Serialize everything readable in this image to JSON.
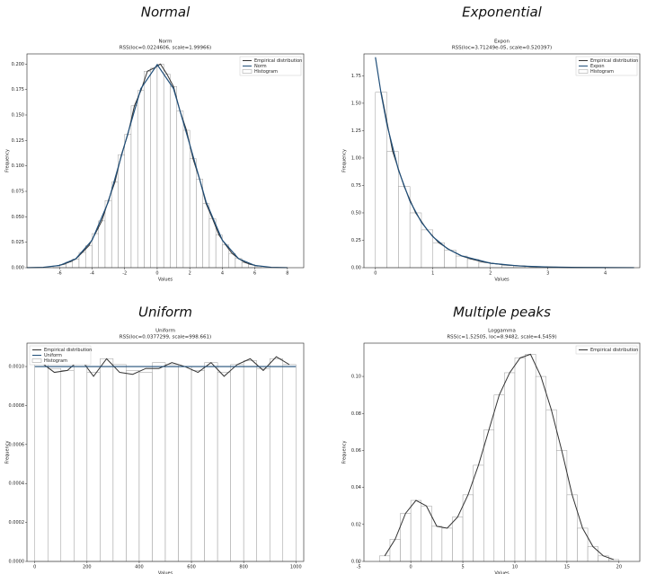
{
  "chart_data": [
    {
      "type": "histfit",
      "heading": "Normal",
      "title": "Norm",
      "subtitle": "RSS(loc=0.0224606, scale=1.99966)",
      "xlabel": "Values",
      "ylabel": "Frequency",
      "legend": "upper right",
      "xlim": [
        -8,
        9
      ],
      "ylim": [
        0,
        0.21
      ],
      "xticks": [
        -6,
        -4,
        -2,
        0,
        2,
        4,
        6,
        8
      ],
      "yticks": [
        {
          "value": 0,
          "label": "0.000"
        },
        {
          "value": 0.025,
          "label": "0.025"
        },
        {
          "value": 0.05,
          "label": "0.050"
        },
        {
          "value": 0.075,
          "label": "0.075"
        },
        {
          "value": 0.1,
          "label": "0.100"
        },
        {
          "value": 0.125,
          "label": "0.125"
        },
        {
          "value": 0.15,
          "label": "0.150"
        },
        {
          "value": 0.175,
          "label": "0.175"
        },
        {
          "value": 0.2,
          "label": "0.200"
        }
      ],
      "series": [
        {
          "name": "Empirical distribution",
          "color": "#333333",
          "x": [
            -6.2,
            -5.8,
            -5.4,
            -5,
            -4.6,
            -4.2,
            -3.8,
            -3.4,
            -3,
            -2.6,
            -2.2,
            -1.8,
            -1.4,
            -1,
            -0.6,
            -0.2,
            0.2,
            0.6,
            1,
            1.4,
            1.8,
            2.2,
            2.6,
            3,
            3.4,
            3.8,
            4.2,
            4.6,
            5,
            5.4,
            5.8,
            6.2
          ],
          "values": [
            0.0017,
            0.0031,
            0.0055,
            0.0085,
            0.015,
            0.0215,
            0.0335,
            0.046,
            0.066,
            0.084,
            0.111,
            0.131,
            0.159,
            0.174,
            0.193,
            0.196,
            0.2,
            0.19,
            0.178,
            0.154,
            0.135,
            0.107,
            0.087,
            0.063,
            0.048,
            0.032,
            0.0225,
            0.014,
            0.009,
            0.005,
            0.003,
            0.0015
          ]
        },
        {
          "name": "Norm",
          "color": "#1f4e79",
          "x": [
            -8,
            -7,
            -6,
            -5,
            -4,
            -3,
            -2,
            -1,
            0,
            1,
            2,
            3,
            4,
            5,
            6,
            7,
            8
          ],
          "values": [
            7e-05,
            0.0004,
            0.0022,
            0.0088,
            0.027,
            0.0648,
            0.121,
            0.176,
            0.1995,
            0.176,
            0.121,
            0.0648,
            0.027,
            0.0088,
            0.0022,
            0.0004,
            7e-05
          ]
        }
      ],
      "histogram": {
        "name": "Histogram",
        "color": "#999999",
        "bins": [
          -6.4,
          -6,
          -5.6,
          -5.2,
          -4.8,
          -4.4,
          -4,
          -3.6,
          -3.2,
          -2.8,
          -2.4,
          -2,
          -1.6,
          -1.2,
          -0.8,
          -0.4,
          0,
          0.4,
          0.8,
          1.2,
          1.6,
          2,
          2.4,
          2.8,
          3.2,
          3.6,
          4,
          4.4,
          4.8,
          5.2,
          5.6,
          6,
          6.4
        ],
        "values": [
          0.0017,
          0.0031,
          0.0055,
          0.0085,
          0.015,
          0.0215,
          0.0335,
          0.046,
          0.066,
          0.084,
          0.111,
          0.131,
          0.159,
          0.174,
          0.193,
          0.196,
          0.2,
          0.19,
          0.178,
          0.154,
          0.135,
          0.107,
          0.087,
          0.063,
          0.048,
          0.032,
          0.0225,
          0.014,
          0.009,
          0.005,
          0.003,
          0.0015
        ]
      }
    },
    {
      "type": "histfit",
      "heading": "Exponential",
      "title": "Expon",
      "subtitle": "RSS(loc=3.71249e-05, scale=0.520397)",
      "xlabel": "Values",
      "ylabel": "Frequency",
      "legend": "upper right",
      "xlim": [
        -0.2,
        4.6
      ],
      "ylim": [
        0,
        1.95
      ],
      "xticks": [
        0,
        1,
        2,
        3,
        4
      ],
      "yticks": [
        {
          "value": 0,
          "label": "0.00"
        },
        {
          "value": 0.25,
          "label": "0.25"
        },
        {
          "value": 0.5,
          "label": "0.50"
        },
        {
          "value": 0.75,
          "label": "0.75"
        },
        {
          "value": 1,
          "label": "1.00"
        },
        {
          "value": 1.25,
          "label": "1.25"
        },
        {
          "value": 1.5,
          "label": "1.50"
        },
        {
          "value": 1.75,
          "label": "1.75"
        }
      ],
      "series": [
        {
          "name": "Empirical distribution",
          "color": "#333333",
          "x": [
            0.1,
            0.3,
            0.5,
            0.7,
            0.9,
            1.1,
            1.3,
            1.5,
            1.7,
            1.9,
            2.1,
            2.3,
            2.5,
            2.7,
            2.9,
            3.1,
            3.3,
            3.5,
            3.7,
            3.9,
            4.1,
            4.3
          ],
          "values": [
            1.6,
            1.06,
            0.74,
            0.5,
            0.345,
            0.228,
            0.16,
            0.106,
            0.075,
            0.049,
            0.035,
            0.022,
            0.017,
            0.01,
            0.008,
            0.005,
            0.003,
            0.002,
            0.001,
            0.001,
            0.0005,
            0.0003
          ]
        },
        {
          "name": "Expon",
          "color": "#1f4e79",
          "x": [
            0,
            0.1,
            0.2,
            0.4,
            0.6,
            0.8,
            1,
            1.25,
            1.5,
            2,
            2.5,
            3,
            3.5,
            4,
            4.5
          ],
          "values": [
            1.92,
            1.584,
            1.307,
            0.891,
            0.607,
            0.414,
            0.282,
            0.174,
            0.108,
            0.041,
            0.016,
            0.006,
            0.0023,
            0.0009,
            0.0003
          ]
        }
      ],
      "histogram": {
        "name": "Histogram",
        "color": "#999999",
        "bins": [
          0,
          0.2,
          0.4,
          0.6,
          0.8,
          1,
          1.2,
          1.4,
          1.6,
          1.8,
          2,
          2.2,
          2.4,
          2.6,
          2.8,
          3,
          3.2,
          3.4,
          3.6,
          3.8,
          4,
          4.2,
          4.4
        ],
        "values": [
          1.6,
          1.06,
          0.74,
          0.5,
          0.345,
          0.228,
          0.16,
          0.106,
          0.075,
          0.049,
          0.035,
          0.022,
          0.017,
          0.01,
          0.008,
          0.005,
          0.003,
          0.002,
          0.001,
          0.001,
          0.0005,
          0.0003
        ]
      }
    },
    {
      "type": "histfit",
      "heading": "Uniform",
      "title": "Uniform",
      "subtitle": "RSS(loc=0.0377299, scale=998.661)",
      "xlabel": "Values",
      "ylabel": "Frequency",
      "legend": "upper left",
      "xlim": [
        -30,
        1030
      ],
      "ylim": [
        0,
        0.00112
      ],
      "xticks": [
        0,
        200,
        400,
        600,
        800,
        1000
      ],
      "yticks": [
        {
          "value": 0,
          "label": "0.0000"
        },
        {
          "value": 0.0002,
          "label": "0.0002"
        },
        {
          "value": 0.0004,
          "label": "0.0004"
        },
        {
          "value": 0.0006,
          "label": "0.0006"
        },
        {
          "value": 0.0008,
          "label": "0.0008"
        },
        {
          "value": 0.001,
          "label": "0.0010"
        }
      ],
      "series": [
        {
          "name": "Empirical distribution",
          "color": "#333333",
          "x": [
            25,
            75,
            125,
            175,
            225,
            275,
            325,
            375,
            425,
            475,
            525,
            575,
            625,
            675,
            725,
            775,
            825,
            875,
            925,
            975
          ],
          "values": [
            0.00102,
            0.00097,
            0.00098,
            0.00104,
            0.00095,
            0.00104,
            0.00097,
            0.00096,
            0.00099,
            0.00099,
            0.00102,
            0.001,
            0.00097,
            0.00102,
            0.00095,
            0.00101,
            0.00104,
            0.00098,
            0.00105,
            0.00101
          ]
        },
        {
          "name": "Uniform",
          "color": "#1f4e79",
          "x": [
            0,
            1000
          ],
          "values": [
            0.001,
            0.001
          ]
        }
      ],
      "histogram": {
        "name": "Histogram",
        "color": "#999999",
        "bins": [
          0,
          50,
          100,
          150,
          200,
          250,
          300,
          350,
          400,
          450,
          500,
          550,
          600,
          650,
          700,
          750,
          800,
          850,
          900,
          950,
          1000
        ],
        "values": [
          0.00102,
          0.00099,
          0.00098,
          0.00103,
          0.00097,
          0.00104,
          0.00101,
          0.00098,
          0.00097,
          0.00102,
          0.00101,
          0.001,
          0.00098,
          0.00102,
          0.00097,
          0.00101,
          0.00103,
          0.00099,
          0.00104,
          0.00101
        ]
      }
    },
    {
      "type": "histfit",
      "heading": "Multiple peaks",
      "title": "Loggamma",
      "subtitle": "RSS(c=1.52505, loc=8.9482, scale=4.5459)",
      "xlabel": "Values",
      "ylabel": "Frequency",
      "legend": "upper right",
      "xlim": [
        -4.5,
        22
      ],
      "ylim": [
        0,
        0.118
      ],
      "xticks": [
        -5,
        0,
        5,
        10,
        15,
        20
      ],
      "yticks": [
        {
          "value": 0,
          "label": "0.00"
        },
        {
          "value": 0.02,
          "label": "0.02"
        },
        {
          "value": 0.04,
          "label": "0.04"
        },
        {
          "value": 0.06,
          "label": "0.06"
        },
        {
          "value": 0.08,
          "label": "0.08"
        },
        {
          "value": 0.1,
          "label": "0.10"
        }
      ],
      "series": [
        {
          "name": "Empirical distribution",
          "color": "#333333",
          "x": [
            -2.5,
            -1.5,
            -0.5,
            0.5,
            1.5,
            2.5,
            3.5,
            4.5,
            5.5,
            6.5,
            7.5,
            8.5,
            9.5,
            10.5,
            11.5,
            12.5,
            13.5,
            14.5,
            15.5,
            16.5,
            17.5,
            18.5,
            19.5
          ],
          "values": [
            0.003,
            0.012,
            0.026,
            0.033,
            0.03,
            0.019,
            0.018,
            0.024,
            0.036,
            0.052,
            0.071,
            0.09,
            0.102,
            0.11,
            0.112,
            0.1,
            0.082,
            0.06,
            0.036,
            0.018,
            0.008,
            0.003,
            0.001
          ]
        }
      ],
      "histogram": {
        "color": "#999999",
        "bins": [
          -3,
          -2,
          -1,
          0,
          1,
          2,
          3,
          4,
          5,
          6,
          7,
          8,
          9,
          10,
          11,
          12,
          13,
          14,
          15,
          16,
          17,
          18,
          19,
          20
        ],
        "values": [
          0.003,
          0.012,
          0.026,
          0.033,
          0.03,
          0.019,
          0.018,
          0.024,
          0.036,
          0.052,
          0.071,
          0.09,
          0.102,
          0.11,
          0.112,
          0.1,
          0.082,
          0.06,
          0.036,
          0.018,
          0.008,
          0.003,
          0.001
        ]
      }
    }
  ]
}
